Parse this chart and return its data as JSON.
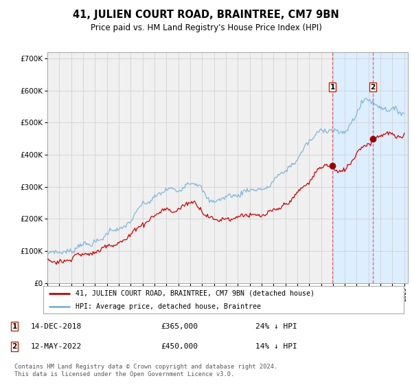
{
  "title": "41, JULIEN COURT ROAD, BRAINTREE, CM7 9BN",
  "subtitle": "Price paid vs. HM Land Registry's House Price Index (HPI)",
  "ylim": [
    0,
    720000
  ],
  "yticks": [
    0,
    100000,
    200000,
    300000,
    400000,
    500000,
    600000,
    700000
  ],
  "ytick_labels": [
    "£0",
    "£100K",
    "£200K",
    "£300K",
    "£400K",
    "£500K",
    "£600K",
    "£700K"
  ],
  "background_color": "#ffffff",
  "plot_bg_color": "#f0f0f0",
  "grid_color": "#cccccc",
  "hpi_color": "#7ab4d8",
  "price_color": "#cc0000",
  "highlight_bg": "#ddeeff",
  "sale1_year": 2018.95,
  "sale1_value": 365000,
  "sale1_label": "14-DEC-2018",
  "sale1_price_label": "£365,000",
  "sale1_hpi_pct": "24% ↓ HPI",
  "sale2_year": 2022.37,
  "sale2_value": 450000,
  "sale2_label": "12-MAY-2022",
  "sale2_price_label": "£450,000",
  "sale2_hpi_pct": "14% ↓ HPI",
  "legend_line1": "41, JULIEN COURT ROAD, BRAINTREE, CM7 9BN (detached house)",
  "legend_line2": "HPI: Average price, detached house, Braintree",
  "footnote": "Contains HM Land Registry data © Crown copyright and database right 2024.\nThis data is licensed under the Open Government Licence v3.0.",
  "xstart": 1995,
  "xend": 2025
}
